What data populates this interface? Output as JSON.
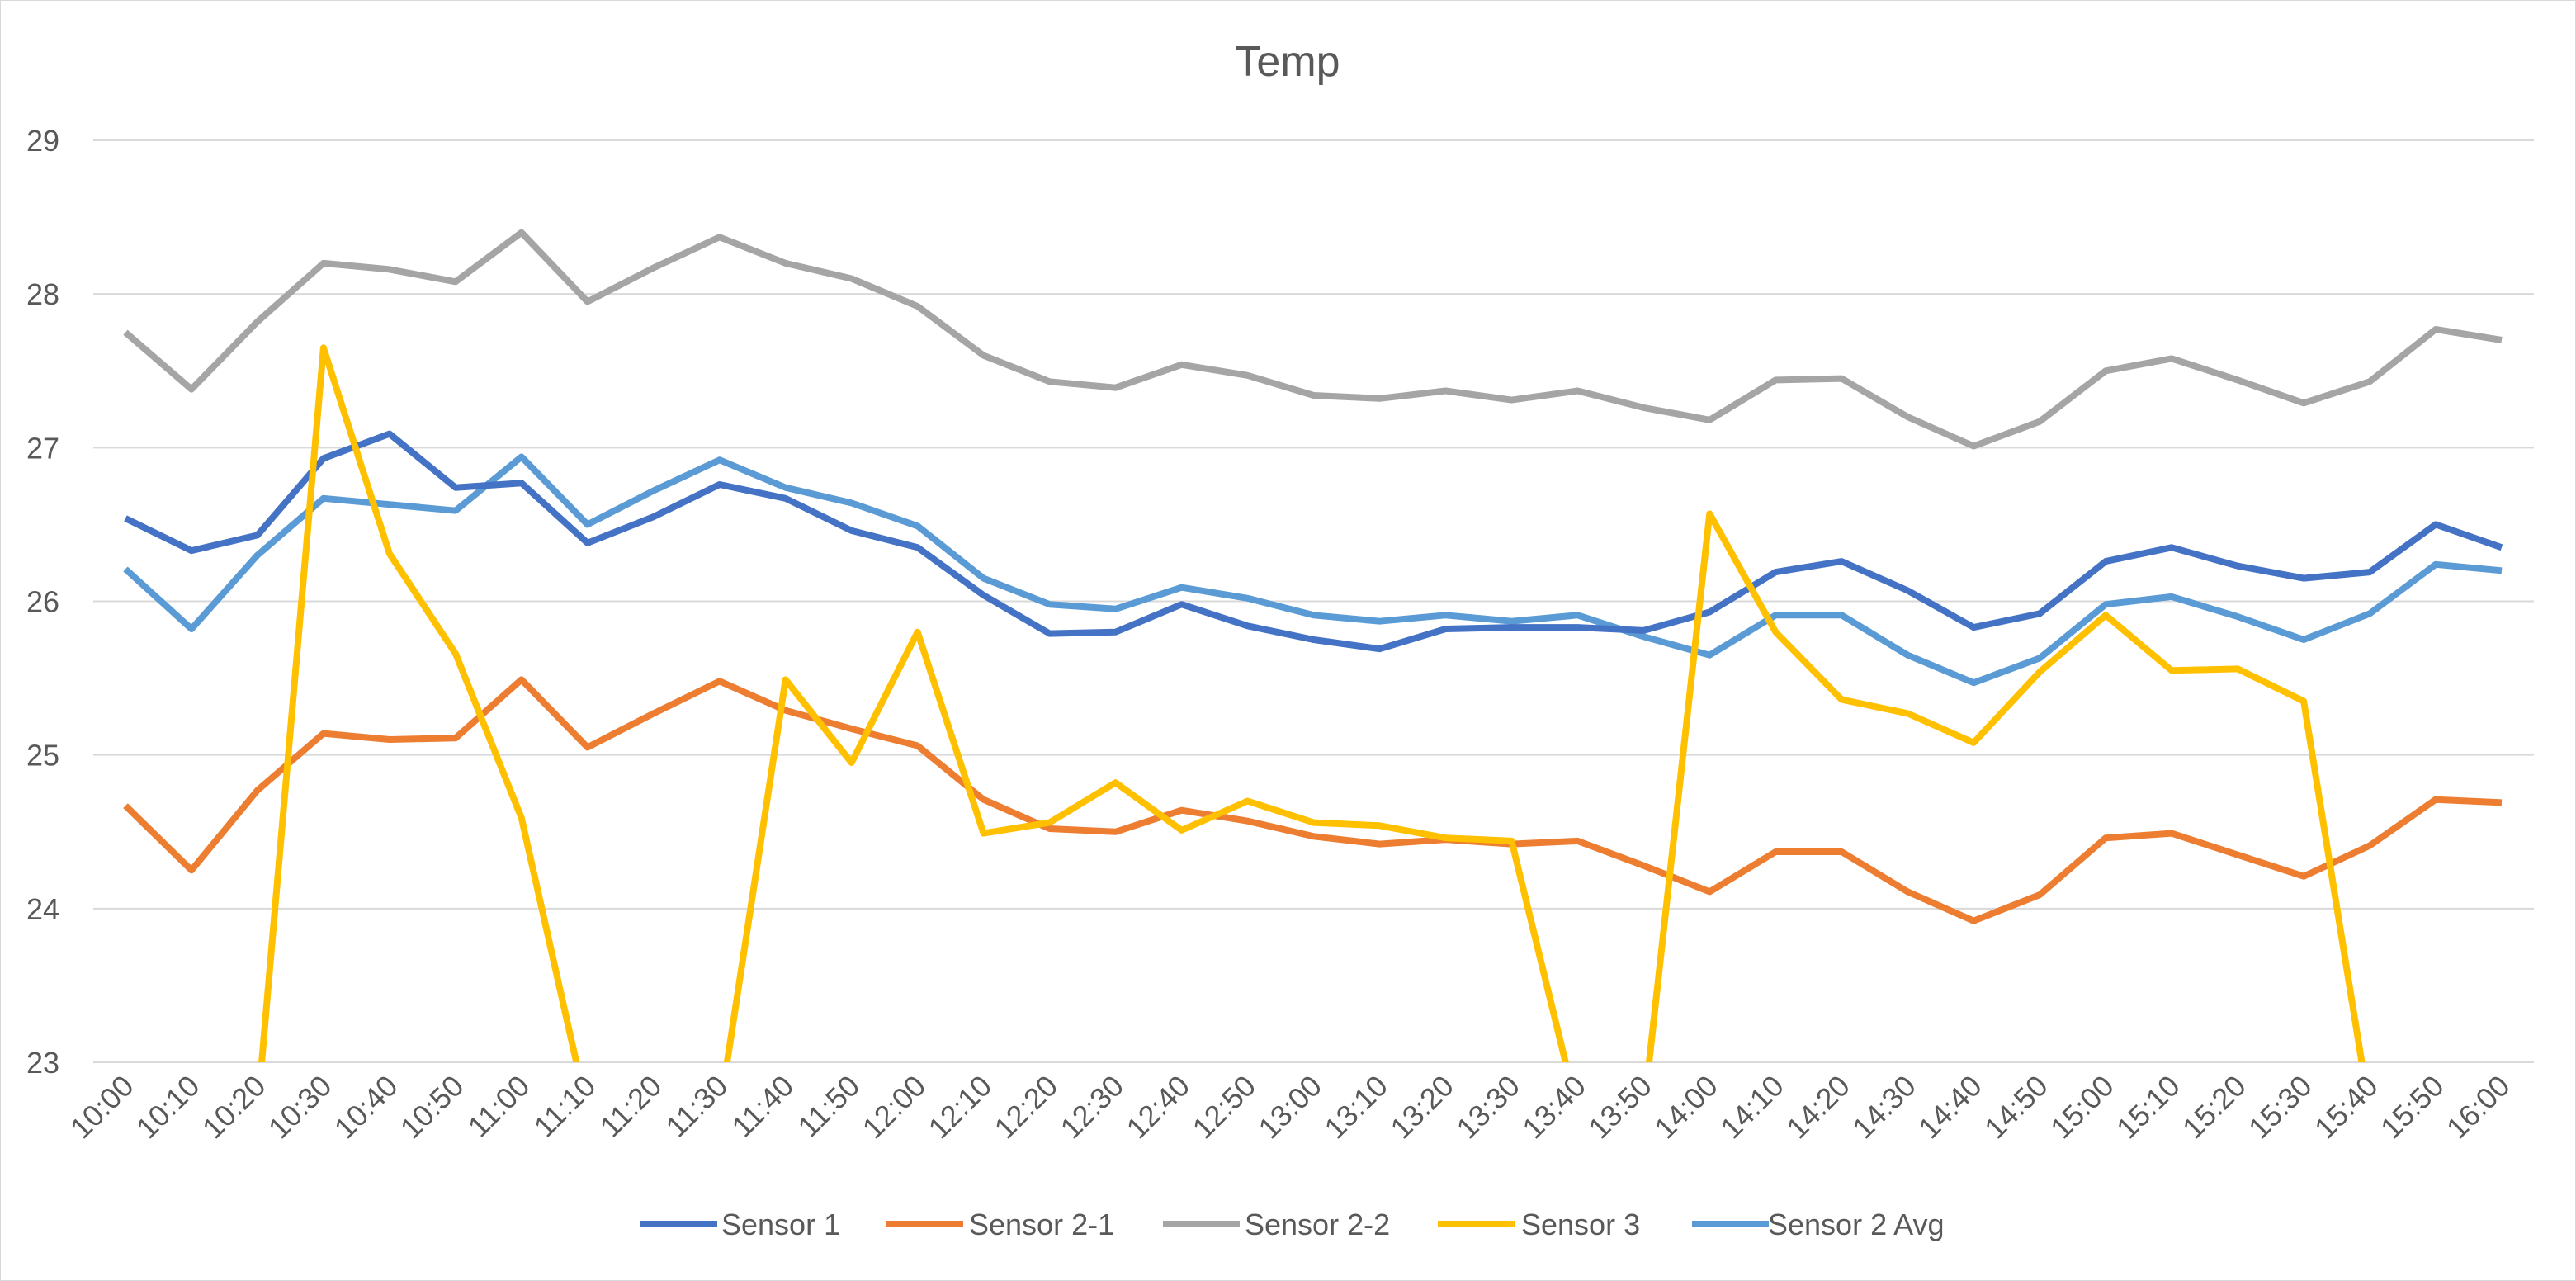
{
  "chart_data": {
    "type": "line",
    "title": "Temp",
    "xlabel": "",
    "ylabel": "",
    "ylim": [
      23,
      29
    ],
    "yticks": [
      "23",
      "24",
      "25",
      "26",
      "27",
      "28",
      "29"
    ],
    "grid": true,
    "legend_position": "bottom",
    "categories": [
      "10:00",
      "10:10",
      "10:20",
      "10:30",
      "10:40",
      "10:50",
      "11:00",
      "11:10",
      "11:20",
      "11:30",
      "11:40",
      "11:50",
      "12:00",
      "12:10",
      "12:20",
      "12:30",
      "12:40",
      "12:50",
      "13:00",
      "13:10",
      "13:20",
      "13:30",
      "13:40",
      "13:50",
      "14:00",
      "14:10",
      "14:20",
      "14:30",
      "14:40",
      "14:50",
      "15:00",
      "15:10",
      "15:20",
      "15:30",
      "15:40",
      "15:50",
      "16:00"
    ],
    "series": [
      {
        "name": "Sensor 1",
        "color": "#4472C4",
        "values": [
          26.54,
          26.33,
          26.43,
          26.93,
          27.09,
          26.74,
          26.77,
          26.38,
          26.55,
          26.76,
          26.67,
          26.46,
          26.35,
          26.04,
          25.79,
          25.8,
          25.98,
          25.84,
          25.75,
          25.69,
          25.82,
          25.83,
          25.83,
          25.81,
          25.93,
          26.19,
          26.26,
          26.07,
          25.83,
          25.92,
          26.26,
          26.35,
          26.23,
          26.15,
          26.19,
          26.5,
          26.35
        ]
      },
      {
        "name": "Sensor 2-1",
        "color": "#ED7D31",
        "values": [
          24.67,
          24.25,
          24.77,
          25.14,
          25.1,
          25.11,
          25.49,
          25.05,
          25.27,
          25.48,
          25.29,
          25.17,
          25.06,
          24.71,
          24.52,
          24.5,
          24.64,
          24.57,
          24.47,
          24.42,
          24.45,
          24.42,
          24.44,
          24.28,
          24.11,
          24.37,
          24.37,
          24.11,
          23.92,
          24.09,
          24.46,
          24.49,
          24.35,
          24.21,
          24.41,
          24.71,
          24.69
        ]
      },
      {
        "name": "Sensor 2-2",
        "color": "#A5A5A5",
        "values": [
          27.75,
          27.38,
          27.82,
          28.2,
          28.16,
          28.08,
          28.4,
          27.95,
          28.17,
          28.37,
          28.2,
          28.1,
          27.92,
          27.6,
          27.43,
          27.39,
          27.54,
          27.47,
          27.34,
          27.32,
          27.37,
          27.31,
          27.37,
          27.26,
          27.18,
          27.44,
          27.45,
          27.2,
          27.01,
          27.17,
          27.5,
          27.58,
          27.44,
          27.29,
          27.43,
          27.77,
          27.7
        ]
      },
      {
        "name": "Sensor 3",
        "color": "#FFC000",
        "values": [
          null,
          null,
          null,
          27.65,
          26.31,
          25.66,
          24.59,
          null,
          null,
          null,
          25.49,
          24.95,
          25.8,
          24.49,
          24.56,
          24.82,
          24.51,
          24.7,
          24.56,
          24.54,
          24.46,
          24.44,
          null,
          null,
          26.57,
          25.8,
          25.36,
          25.27,
          25.08,
          25.54,
          25.91,
          25.55,
          25.56,
          25.35,
          null,
          null,
          null
        ]
      },
      {
        "name": "Sensor 2 Avg",
        "color": "#5B9BD5",
        "values": [
          26.21,
          25.82,
          26.3,
          26.67,
          26.63,
          26.59,
          26.94,
          26.5,
          26.72,
          26.92,
          26.74,
          26.64,
          26.49,
          26.15,
          25.98,
          25.95,
          26.09,
          26.02,
          25.91,
          25.87,
          25.91,
          25.87,
          25.91,
          25.77,
          25.65,
          25.91,
          25.91,
          25.65,
          25.47,
          25.63,
          25.98,
          26.03,
          25.9,
          25.75,
          25.92,
          26.24,
          26.2
        ]
      }
    ]
  }
}
